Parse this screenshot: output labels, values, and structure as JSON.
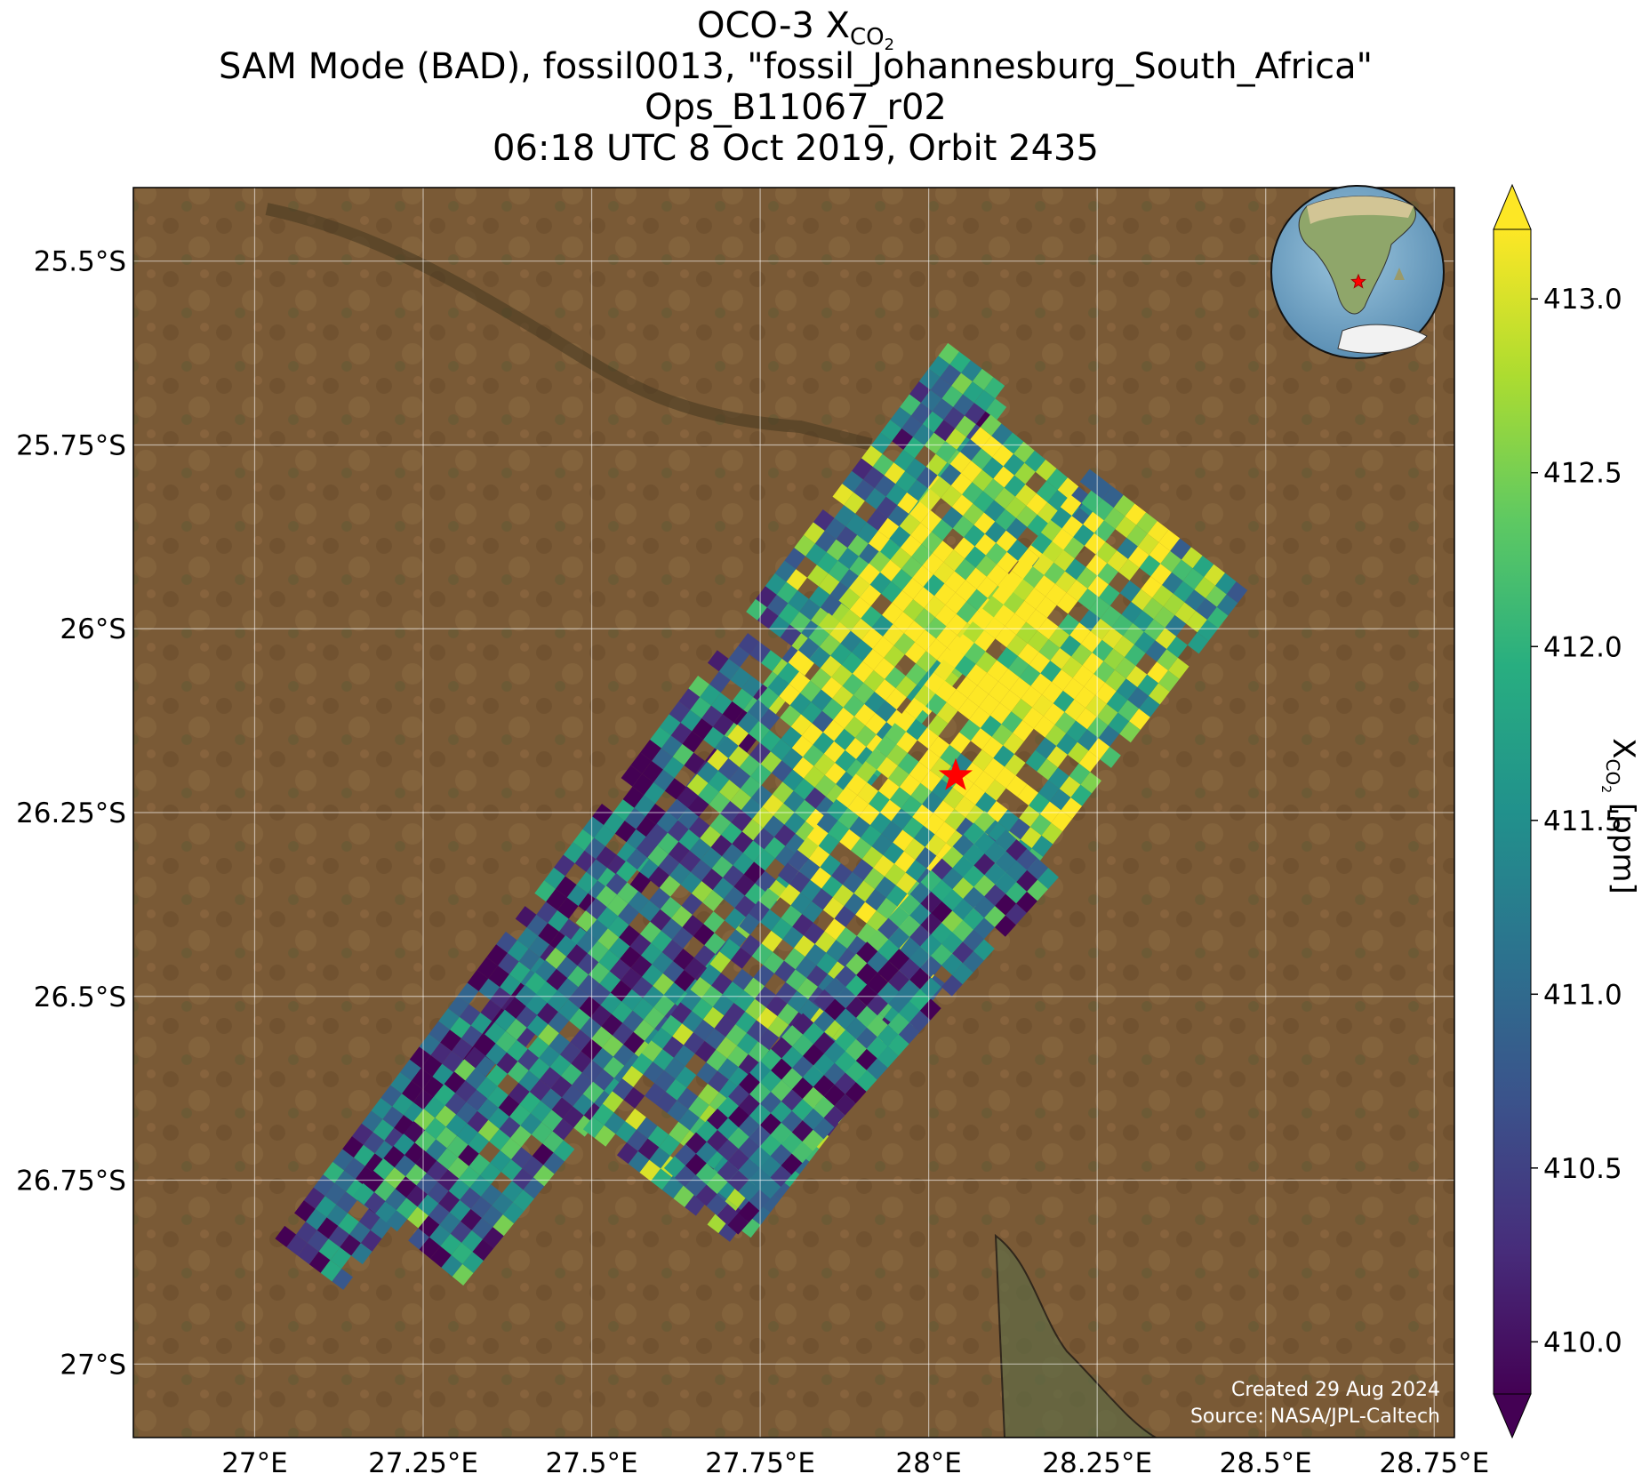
{
  "title": {
    "line1_prefix": "OCO-3 X",
    "line1_sub": "CO",
    "line1_sub2": "2",
    "line2": "SAM Mode (BAD), fossil0013, \"fossil_Johannesburg_South_Africa\"",
    "line3": "Ops_B11067_r02",
    "line4": "06:18 UTC 8 Oct 2019, Orbit 2435"
  },
  "map": {
    "lon_ticks": [
      "27°E",
      "27.25°E",
      "27.5°E",
      "27.75°E",
      "28°E",
      "28.25°E",
      "28.5°E",
      "28.75°E"
    ],
    "lat_ticks": [
      "25.5°S",
      "25.75°S",
      "26°S",
      "26.25°S",
      "26.5°S",
      "26.75°S",
      "27°S"
    ],
    "lon_range": [
      26.82,
      28.78
    ],
    "lat_range": [
      -25.4,
      -27.1
    ],
    "target_marker": {
      "lon": 28.04,
      "lat": -26.2,
      "color": "#ff0000",
      "symbol": "star"
    },
    "basemap": "satellite imagery",
    "grid": true
  },
  "colorbar": {
    "label_prefix": "X",
    "label_sub": "CO",
    "label_sub2": "2",
    "label_suffix": " [ppm]",
    "tick_labels": [
      "410.0",
      "410.5",
      "411.0",
      "411.5",
      "412.0",
      "412.5",
      "413.0"
    ],
    "range": [
      409.85,
      413.2
    ],
    "colormap": "viridis",
    "extend": "both"
  },
  "inset_globe": {
    "marker_color": "#ff0000",
    "marker": "star"
  },
  "credit": {
    "created": "Created 29 Aug 2024",
    "source": "Source: NASA/JPL-Caltech"
  }
}
